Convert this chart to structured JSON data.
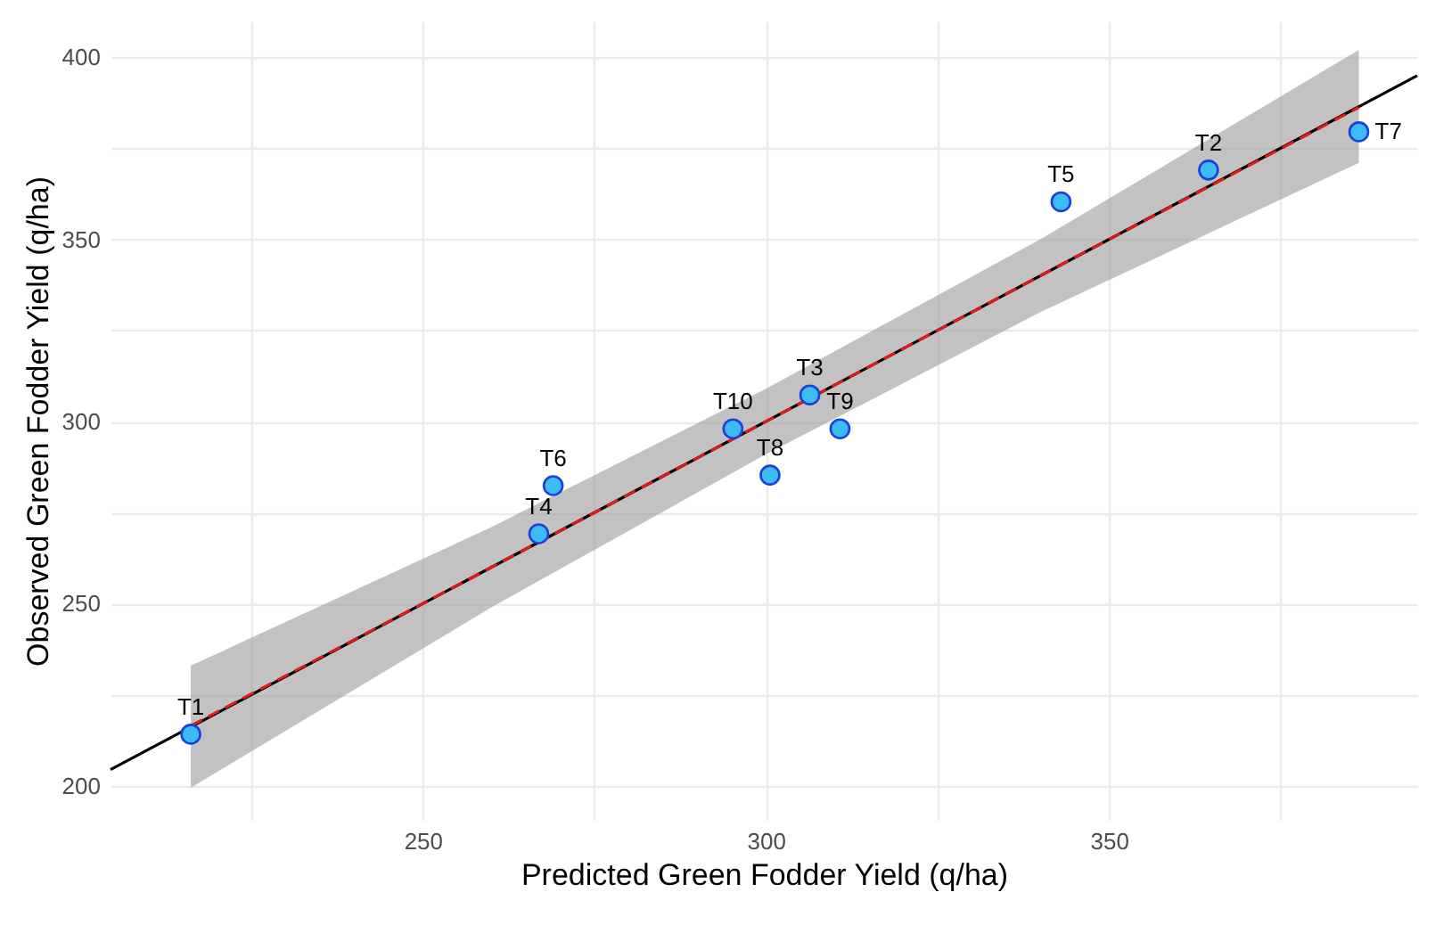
{
  "chart_data": {
    "type": "scatter",
    "xlabel": "Predicted Green Fodder Yield (q/ha)",
    "ylabel": "Observed Green Fodder Yield (q/ha)",
    "xlim": [
      204.5,
      394.9
    ],
    "ylim": [
      190.7,
      409.8
    ],
    "xticks": [
      {
        "value": 225,
        "label": null
      },
      250,
      {
        "value": 275,
        "label": null
      },
      300,
      {
        "value": 325,
        "label": null
      },
      350,
      {
        "value": 375,
        "label": null
      }
    ],
    "yticks": [
      200,
      {
        "value": 225,
        "label": null
      },
      250,
      {
        "value": 275,
        "label": null
      },
      300,
      {
        "value": 325,
        "label": null
      },
      350,
      {
        "value": 375,
        "label": null
      },
      400
    ],
    "grid": true,
    "marker": "circle",
    "series": [
      {
        "type": "line",
        "marker": "none",
        "color": "#000000",
        "line_style": "solid",
        "x": [
          204.5,
          394.9
        ],
        "values": [
          204.5,
          394.9
        ]
      },
      {
        "type": "line",
        "marker": "none",
        "color": "#e31a1c",
        "line_style": "dashed",
        "x": [
          216.2,
          260,
          300,
          340,
          386.4
        ],
        "values": [
          216.5,
          260,
          300,
          340,
          386.2
        ],
        "lower": [
          199.5,
          249,
          291,
          330,
          371
        ],
        "upper": [
          233,
          271,
          309,
          350,
          402
        ]
      },
      {
        "color": "#3bbcf5",
        "x": [
          216.2,
          364.5,
          306.4,
          266.9,
          343,
          269,
          386.4,
          300.6,
          310.8,
          295.2
        ],
        "values": [
          214.2,
          369,
          307.3,
          269.2,
          360.3,
          282.4,
          379.5,
          285.3,
          298,
          298
        ]
      }
    ],
    "annotations": [
      {
        "text": "T1",
        "x": 216.2,
        "y": 214.2
      },
      {
        "text": "T2",
        "x": 364.5,
        "y": 369
      },
      {
        "text": "T3",
        "x": 306.4,
        "y": 307.3
      },
      {
        "text": "T4",
        "x": 266.9,
        "y": 269.2
      },
      {
        "text": "T5",
        "x": 343,
        "y": 360.3
      },
      {
        "text": "T6",
        "x": 269,
        "y": 282.4
      },
      {
        "text": "T7",
        "x": 386.4,
        "y": 379.5
      },
      {
        "text": "T8",
        "x": 300.6,
        "y": 285.3
      },
      {
        "text": "T9",
        "x": 310.8,
        "y": 298
      },
      {
        "text": "T10",
        "x": 295.2,
        "y": 298
      }
    ]
  }
}
